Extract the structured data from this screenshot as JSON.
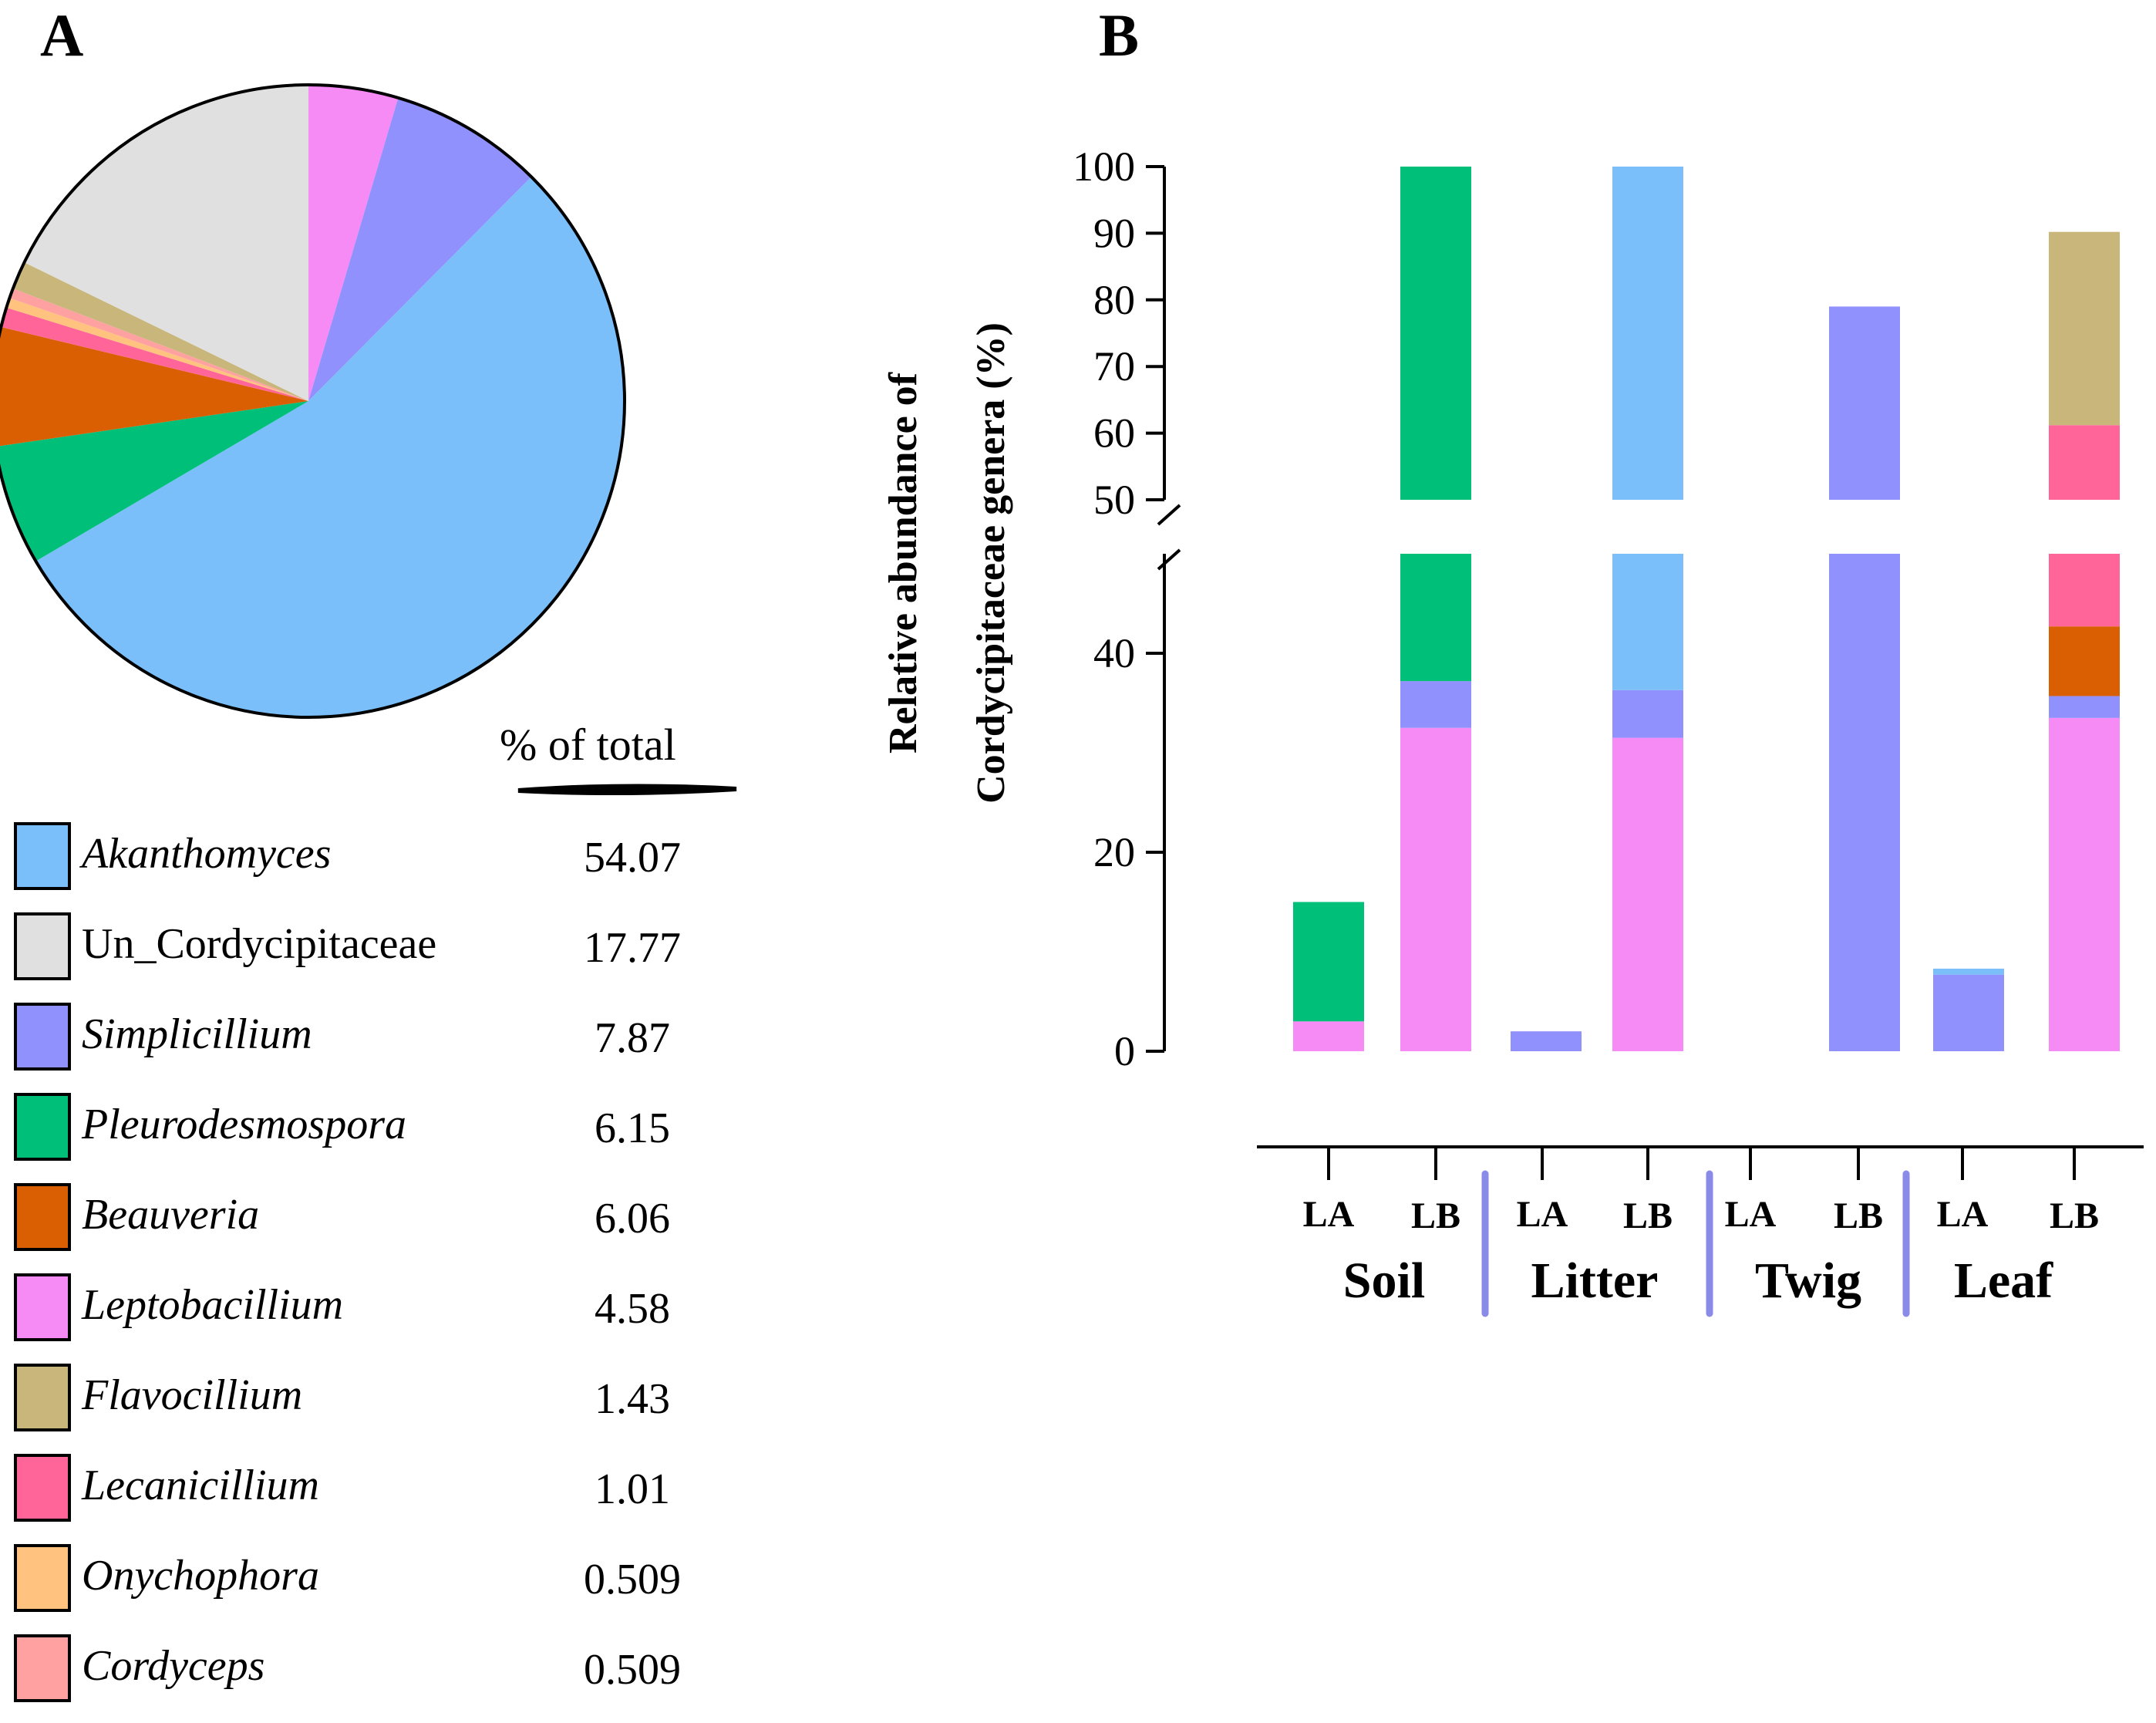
{
  "panel_labels": {
    "a": "A",
    "b": "B"
  },
  "legend": {
    "column_header": "% of  total",
    "items": [
      {
        "label": "Akanthomyces",
        "value": "54.07",
        "color": "#7abff9",
        "italic": true
      },
      {
        "label": "Un_Cordycipitaceae",
        "value": "17.77",
        "color": "#e0e0e0",
        "italic": false
      },
      {
        "label": "Simplicillium",
        "value": "7.87",
        "color": "#9191fd",
        "italic": true
      },
      {
        "label": "Pleurodesmospora",
        "value": "6.15",
        "color": "#00bf78",
        "italic": true
      },
      {
        "label": "Beauveria",
        "value": "6.06",
        "color": "#d95f02",
        "italic": true
      },
      {
        "label": "Leptobacillium",
        "value": "4.58",
        "color": "#f68bf6",
        "italic": true
      },
      {
        "label": "Flavocillium",
        "value": "1.43",
        "color": "#c8b67a",
        "italic": true
      },
      {
        "label": "Lecanicillium",
        "value": "1.01",
        "color": "#ff6598",
        "italic": true
      },
      {
        "label": "Onychophora",
        "value": "0.509",
        "color": "#ffc27f",
        "italic": true
      },
      {
        "label": "Cordyceps",
        "value": "0.509",
        "color": "#ffa1a1",
        "italic": true
      }
    ]
  },
  "chart_data": [
    {
      "type": "pie",
      "title": "",
      "start_angle_deg": 0,
      "slices": [
        {
          "label": "Leptobacillium",
          "value": 4.58,
          "color": "#f68bf6"
        },
        {
          "label": "Simplicillium",
          "value": 7.87,
          "color": "#9191fd"
        },
        {
          "label": "Akanthomyces",
          "value": 54.07,
          "color": "#7abff9"
        },
        {
          "label": "Pleurodesmospora",
          "value": 6.15,
          "color": "#00bf78"
        },
        {
          "label": "Beauveria",
          "value": 6.06,
          "color": "#d95f02"
        },
        {
          "label": "Lecanicillium",
          "value": 1.01,
          "color": "#ff6598"
        },
        {
          "label": "Onychophora",
          "value": 0.509,
          "color": "#ffc27f"
        },
        {
          "label": "Cordyceps",
          "value": 0.509,
          "color": "#ffa1a1"
        },
        {
          "label": "Flavocillium",
          "value": 1.43,
          "color": "#c8b67a"
        },
        {
          "label": "Un_Cordycipitaceae",
          "value": 17.77,
          "color": "#e0e0e0"
        }
      ]
    },
    {
      "type": "bar",
      "stacked": true,
      "ylabel_line1": "Relative abundance of",
      "ylabel_line2": "Cordycipitaceae genera (%)",
      "y_axis_break": [
        50,
        55
      ],
      "lower_ticks": [
        0,
        20,
        40
      ],
      "upper_ticks": [
        50,
        60,
        70,
        80,
        90,
        100
      ],
      "lower_range": [
        0,
        50
      ],
      "upper_range": [
        50,
        100
      ],
      "categories": [
        "LA",
        "LB",
        "LA",
        "LB",
        "LA",
        "LB",
        "LA",
        "LB"
      ],
      "groups": [
        {
          "label": "Soil",
          "categories": [
            "LA",
            "LB"
          ]
        },
        {
          "label": "Litter",
          "categories": [
            "LA",
            "LB"
          ]
        },
        {
          "label": "Twig",
          "categories": [
            "LA",
            "LB"
          ]
        },
        {
          "label": "Leaf",
          "categories": [
            "LA",
            "LB"
          ]
        }
      ],
      "series": [
        {
          "name": "Leptobacillium",
          "color": "#f68bf6",
          "values": [
            3,
            32.5,
            0,
            31.5,
            0,
            0,
            0,
            33.5
          ]
        },
        {
          "name": "Simplicillium",
          "color": "#9191fd",
          "values": [
            0,
            4.7,
            2,
            4.8,
            0,
            79,
            7.7,
            2.2
          ]
        },
        {
          "name": "Beauveria",
          "color": "#d95f02",
          "values": [
            0,
            0,
            0,
            0,
            0,
            0,
            0,
            7
          ]
        },
        {
          "name": "Lecanicillium",
          "color": "#ff6598",
          "values": [
            0,
            0,
            0,
            0,
            0,
            0,
            0,
            18.5
          ]
        },
        {
          "name": "Flavocillium",
          "color": "#c8b67a",
          "values": [
            0,
            0,
            0,
            0,
            0,
            0,
            0,
            29
          ]
        },
        {
          "name": "Pleurodesmospora",
          "color": "#00bf78",
          "values": [
            12,
            62.8,
            0,
            0,
            0,
            0,
            0,
            0
          ]
        },
        {
          "name": "Akanthomyces",
          "color": "#7abff9",
          "values": [
            0,
            0,
            0,
            63.7,
            0,
            0,
            0.6,
            0
          ]
        }
      ]
    }
  ]
}
